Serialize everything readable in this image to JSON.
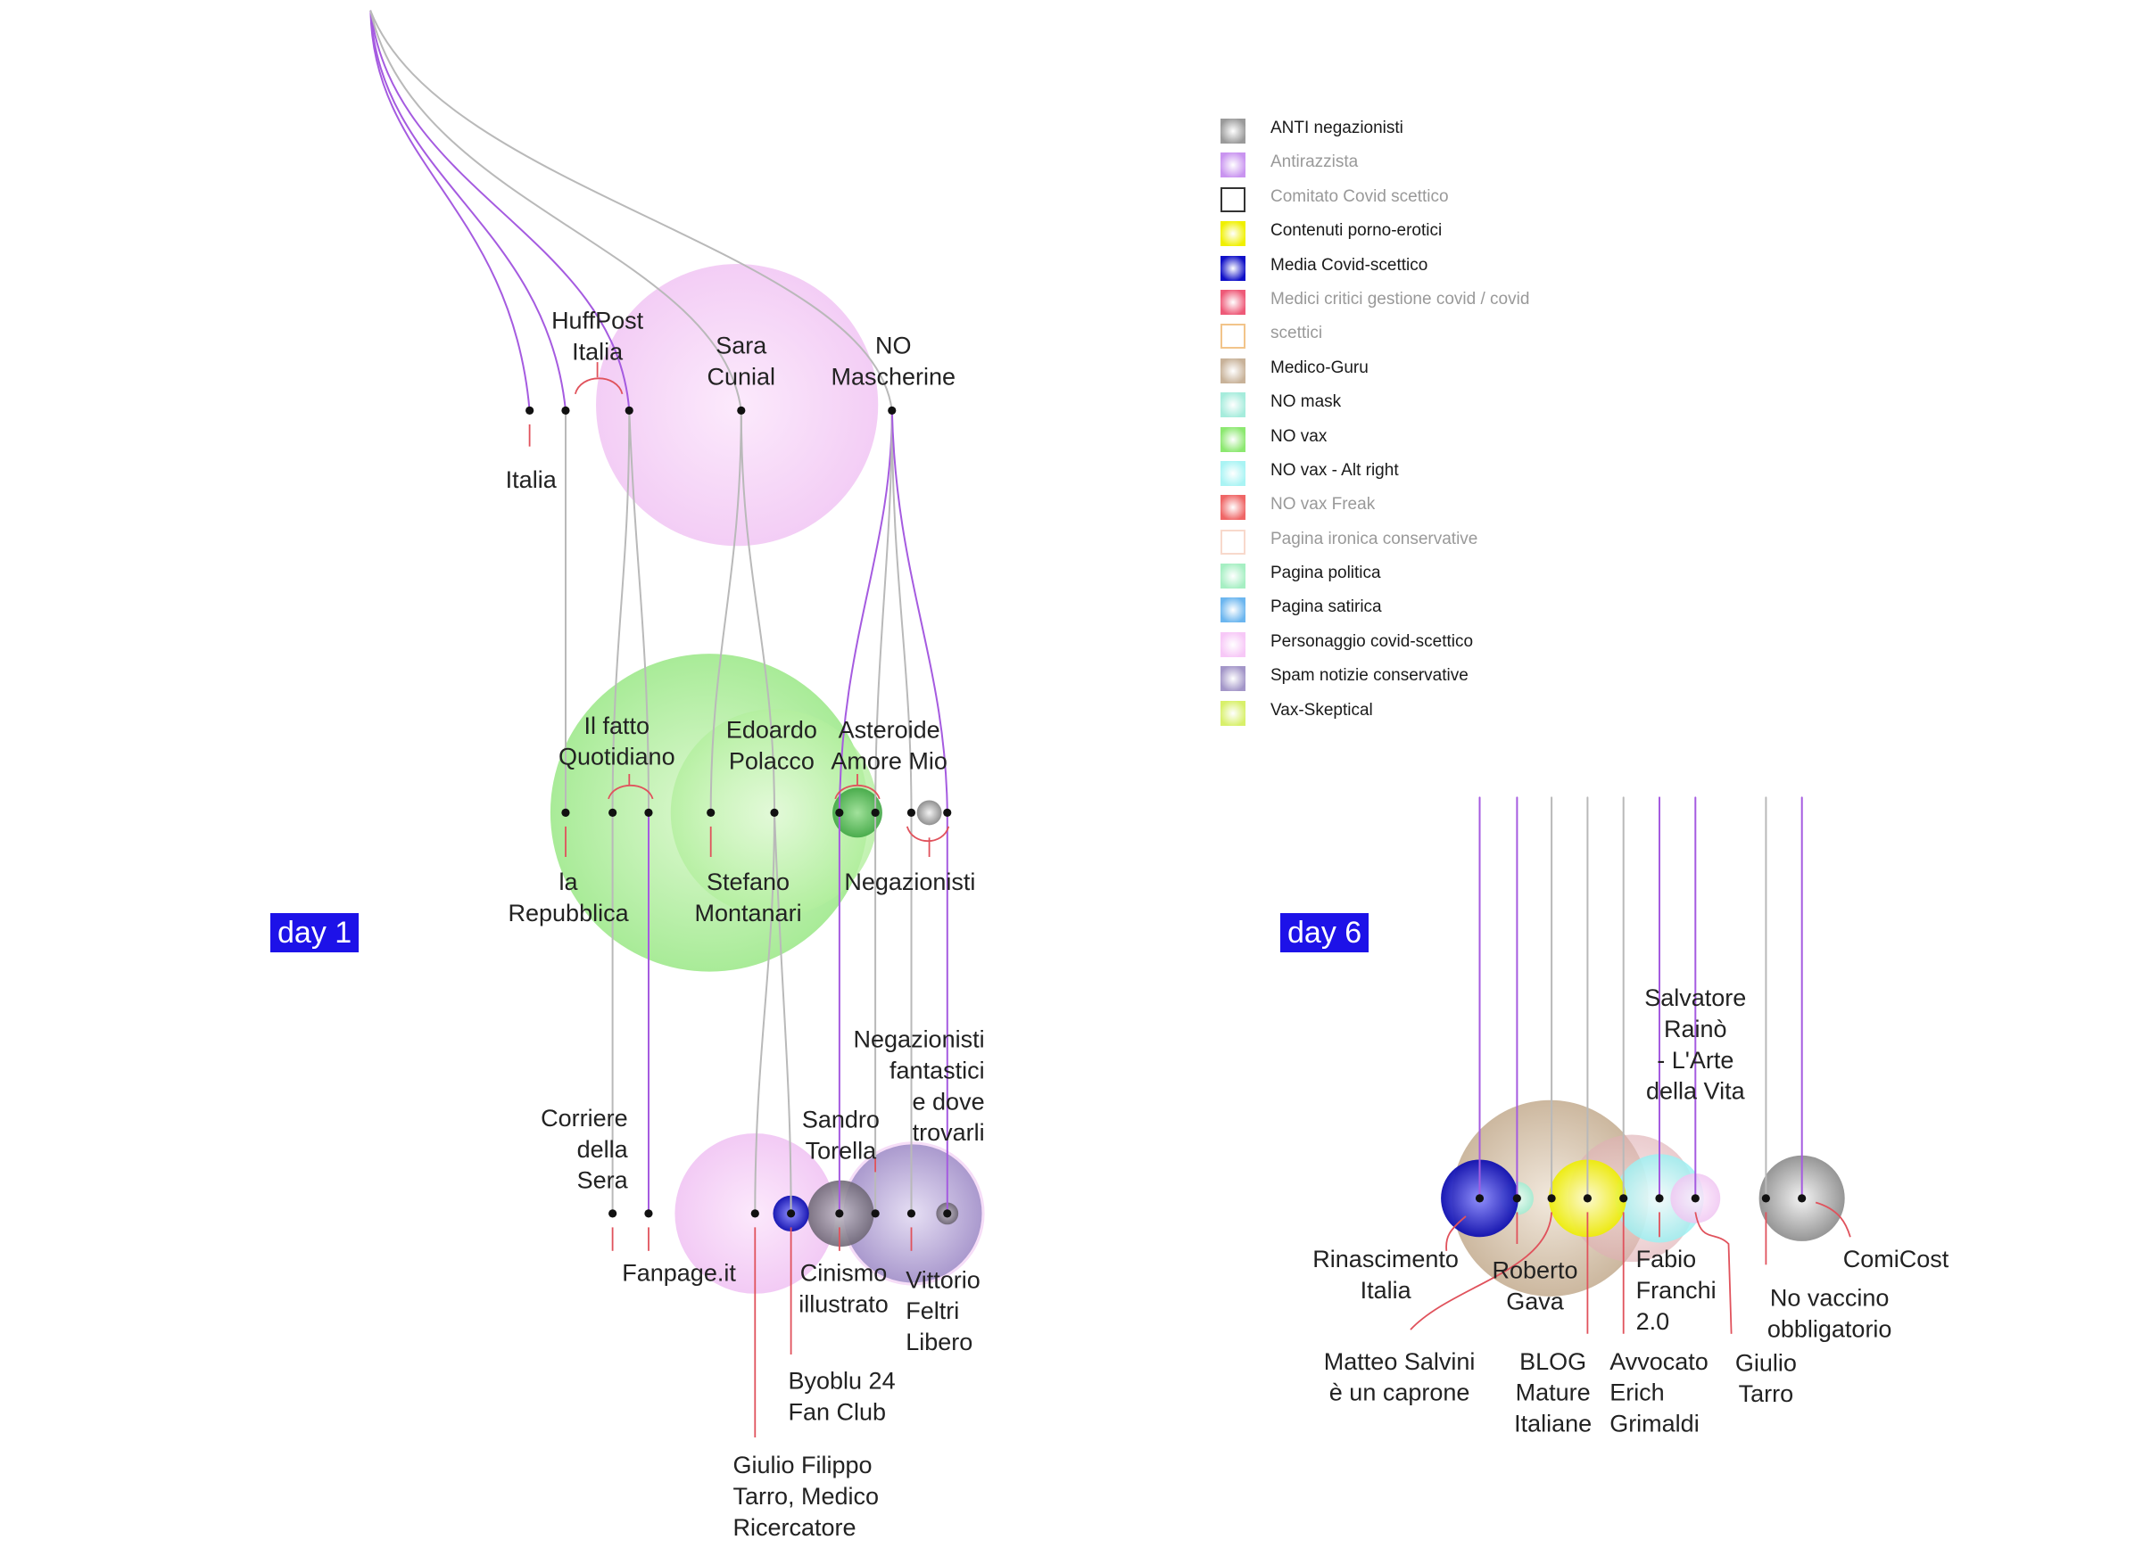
{
  "days": [
    {
      "label": "day 1"
    },
    {
      "label": "day 6"
    }
  ],
  "legend": [
    {
      "label": "ANTI negazionisti",
      "color": "#9a9a9a",
      "style": "filled",
      "muted": false
    },
    {
      "label": "Antirazzista",
      "color": "#c994f0",
      "style": "filled",
      "muted": true
    },
    {
      "label": "Comitato Covid scettico",
      "color": "#333333",
      "style": "outline",
      "muted": true
    },
    {
      "label": "Contenuti porno-erotici",
      "color": "#f0f000",
      "style": "filled",
      "muted": false
    },
    {
      "label": "Media Covid-scettico",
      "color": "#1010c8",
      "style": "filled",
      "muted": false
    },
    {
      "label": "Medici critici gestione covid / covid",
      "color": "#ee5a78",
      "style": "filled",
      "muted": true
    },
    {
      "label": "scettici",
      "color": "#f2c48a",
      "style": "outline",
      "muted": true
    },
    {
      "label": "Medico-Guru",
      "color": "#c8b299",
      "style": "filled",
      "muted": false
    },
    {
      "label": "NO mask",
      "color": "#a6ecdc",
      "style": "filled",
      "muted": false
    },
    {
      "label": "NO vax",
      "color": "#8ce870",
      "style": "filled",
      "muted": false
    },
    {
      "label": "NO vax - Alt right",
      "color": "#a9f4f4",
      "style": "filled",
      "muted": false
    },
    {
      "label": "NO vax Freak",
      "color": "#ef6666",
      "style": "filled",
      "muted": true
    },
    {
      "label": "Pagina ironica conservative",
      "color": "#f8d9cc",
      "style": "outline",
      "muted": true
    },
    {
      "label": "Pagina politica",
      "color": "#a6efc3",
      "style": "filled",
      "muted": false
    },
    {
      "label": "Pagina satirica",
      "color": "#6cb6ef",
      "style": "filled",
      "muted": false
    },
    {
      "label": "Personaggio covid-scettico",
      "color": "#f7c8f7",
      "style": "filled",
      "muted": false
    },
    {
      "label": "Spam notizie conservative",
      "color": "#a396c8",
      "style": "filled",
      "muted": false
    },
    {
      "label": "Vax-Skeptical",
      "color": "#d8f06a",
      "style": "filled",
      "muted": false
    }
  ],
  "labels": {
    "italia": [
      "Italia"
    ],
    "huffpost": [
      "HuffPost",
      "Italia"
    ],
    "sara": [
      "Sara",
      "Cunial"
    ],
    "nomask": [
      "NO",
      "Mascherine"
    ],
    "ilfatto": [
      "Il fatto",
      "Quotidiano"
    ],
    "polacco": [
      "Edoardo",
      "Polacco"
    ],
    "asteroide": [
      "Asteroide",
      "Amore Mio"
    ],
    "repubblica": [
      "la",
      "Repubblica"
    ],
    "montanari": [
      "Stefano",
      "Montanari"
    ],
    "negazionisti": [
      "Negazionisti"
    ],
    "corriere": [
      "Corriere",
      "della",
      "Sera"
    ],
    "fanpage": [
      "Fanpage.it"
    ],
    "sandro": [
      "Sandro",
      "Torella"
    ],
    "negfant": [
      "Negazionisti",
      "fantastici",
      "e dove",
      "trovarli"
    ],
    "cinismo": [
      "Cinismo",
      "illustrato"
    ],
    "feltri": [
      "Vittorio",
      "Feltri",
      "Libero"
    ],
    "byoblu": [
      "Byoblu 24",
      "Fan Club"
    ],
    "tarro_medico": [
      "Giulio Filippo",
      "Tarro, Medico",
      "Ricercatore"
    ],
    "raino": [
      "Salvatore",
      "Rainò",
      "- L'Arte",
      "della Vita"
    ],
    "rinascimento": [
      "Rinascimento",
      "Italia"
    ],
    "gava": [
      "Roberto",
      "Gava"
    ],
    "franchi": [
      "Fabio",
      "Franchi",
      "2.0"
    ],
    "comicost": [
      "ComiCost"
    ],
    "novaccino": [
      "No vaccino",
      "obbligatorio"
    ],
    "salvini": [
      "Matteo Salvini",
      "è un caprone"
    ],
    "blog": [
      "BLOG",
      "Mature",
      "Italiane"
    ],
    "grimaldi": [
      "Avvocato",
      "Erich",
      "Grimaldi"
    ],
    "tarro": [
      "Giulio",
      "Tarro"
    ]
  }
}
